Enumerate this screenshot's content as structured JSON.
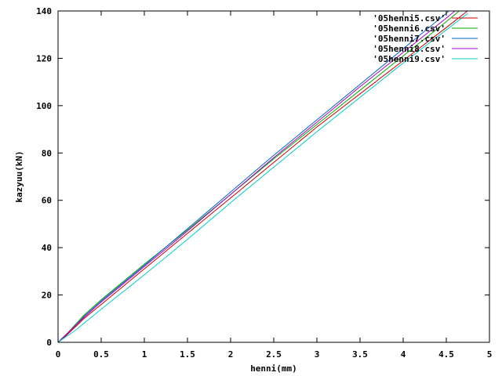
{
  "chart_data": {
    "type": "line",
    "title": "",
    "xlabel": "henni(mm)",
    "ylabel": "kazyuu(kN)",
    "xlim": [
      0,
      5
    ],
    "ylim": [
      0,
      140
    ],
    "x_ticks": [
      0,
      0.5,
      1,
      1.5,
      2,
      2.5,
      3,
      3.5,
      4,
      4.5,
      5
    ],
    "y_ticks": [
      0,
      20,
      40,
      60,
      80,
      100,
      120,
      140
    ],
    "x_tick_labels": [
      "0",
      "0.5",
      "1",
      "1.5",
      "2",
      "2.5",
      "3",
      "3.5",
      "4",
      "4.5",
      "5"
    ],
    "y_tick_labels": [
      "0",
      "20",
      "40",
      "60",
      "80",
      "100",
      "120",
      "140"
    ],
    "grid": false,
    "legend_position": "top-right",
    "series": [
      {
        "name": "'05henni5.csv'",
        "color": "#cc0000",
        "points": [
          [
            0,
            0
          ],
          [
            0.1,
            3
          ],
          [
            0.2,
            6.5
          ],
          [
            0.3,
            10
          ],
          [
            0.5,
            16
          ],
          [
            1,
            31
          ],
          [
            1.5,
            46
          ],
          [
            2,
            61
          ],
          [
            2.5,
            76
          ],
          [
            3,
            91
          ],
          [
            3.5,
            105
          ],
          [
            4,
            119
          ],
          [
            4.5,
            133
          ],
          [
            4.78,
            141
          ]
        ]
      },
      {
        "name": "'05henni6.csv'",
        "color": "#00aa00",
        "points": [
          [
            0,
            0
          ],
          [
            0.1,
            3.5
          ],
          [
            0.2,
            7.5
          ],
          [
            0.3,
            11.5
          ],
          [
            0.5,
            18
          ],
          [
            1,
            33
          ],
          [
            1.5,
            47.5
          ],
          [
            2,
            62.5
          ],
          [
            2.5,
            77.5
          ],
          [
            3,
            92
          ],
          [
            3.5,
            106.5
          ],
          [
            4,
            121
          ],
          [
            4.5,
            135.5
          ],
          [
            4.65,
            140
          ]
        ]
      },
      {
        "name": "'05henni7.csv'",
        "color": "#0066cc",
        "points": [
          [
            0,
            0
          ],
          [
            0.1,
            3.5
          ],
          [
            0.2,
            7
          ],
          [
            0.3,
            11
          ],
          [
            0.5,
            17.5
          ],
          [
            1,
            32.5
          ],
          [
            1.5,
            48
          ],
          [
            2,
            63.5
          ],
          [
            2.5,
            79
          ],
          [
            3,
            94
          ],
          [
            3.5,
            109
          ],
          [
            4,
            124
          ],
          [
            4.5,
            139
          ],
          [
            4.53,
            140
          ]
        ]
      },
      {
        "name": "'05henni8.csv'",
        "color": "#aa00cc",
        "points": [
          [
            0,
            0
          ],
          [
            0.1,
            3.5
          ],
          [
            0.2,
            7
          ],
          [
            0.3,
            10.5
          ],
          [
            0.5,
            17
          ],
          [
            1,
            32
          ],
          [
            1.5,
            47
          ],
          [
            2,
            62.5
          ],
          [
            2.5,
            78
          ],
          [
            3,
            93
          ],
          [
            3.5,
            108
          ],
          [
            4,
            122.5
          ],
          [
            4.5,
            137
          ],
          [
            4.6,
            140
          ]
        ]
      },
      {
        "name": "'05henni9.csv'",
        "color": "#00cccc",
        "points": [
          [
            0,
            0
          ],
          [
            0.1,
            2.5
          ],
          [
            0.2,
            5
          ],
          [
            0.3,
            8
          ],
          [
            0.5,
            14
          ],
          [
            1,
            28.5
          ],
          [
            1.5,
            43.5
          ],
          [
            2,
            59
          ],
          [
            2.5,
            74
          ],
          [
            3,
            89
          ],
          [
            3.5,
            103.5
          ],
          [
            4,
            118
          ],
          [
            4.5,
            132
          ],
          [
            4.75,
            139
          ]
        ]
      }
    ]
  }
}
